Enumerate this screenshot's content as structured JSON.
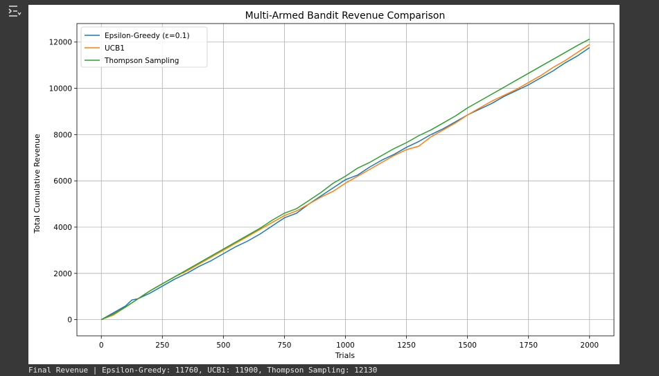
{
  "toolbar": {
    "output_icon": "output-toggle-icon"
  },
  "chart_data": {
    "type": "line",
    "title": "Multi-Armed Bandit Revenue Comparison",
    "xlabel": "Trials",
    "ylabel": "Total Cumulative Revenue",
    "xlim": [
      -100,
      2100
    ],
    "ylim": [
      -700,
      12800
    ],
    "xticks": [
      0,
      250,
      500,
      750,
      1000,
      1250,
      1500,
      1750,
      2000
    ],
    "yticks": [
      0,
      2000,
      4000,
      6000,
      8000,
      10000,
      12000
    ],
    "grid": true,
    "legend_position": "top-left",
    "series": [
      {
        "name": "Epsilon-Greedy (ε=0.1)",
        "color": "#1f77b4",
        "x": [
          0,
          50,
          100,
          125,
          150,
          200,
          250,
          300,
          350,
          400,
          450,
          500,
          550,
          600,
          650,
          700,
          750,
          800,
          850,
          900,
          950,
          1000,
          1050,
          1100,
          1150,
          1200,
          1250,
          1300,
          1350,
          1400,
          1450,
          1500,
          1550,
          1600,
          1650,
          1700,
          1750,
          1800,
          1850,
          1900,
          1950,
          2000
        ],
        "y": [
          0,
          300,
          600,
          850,
          900,
          1150,
          1450,
          1750,
          2000,
          2300,
          2550,
          2850,
          3150,
          3400,
          3700,
          4050,
          4400,
          4600,
          5000,
          5350,
          5700,
          6050,
          6250,
          6600,
          6900,
          7150,
          7450,
          7700,
          8000,
          8250,
          8550,
          8850,
          9100,
          9350,
          9650,
          9900,
          10150,
          10450,
          10750,
          11100,
          11400,
          11760
        ]
      },
      {
        "name": "UCB1",
        "color": "#ff7f0e",
        "x": [
          0,
          50,
          100,
          150,
          200,
          250,
          300,
          350,
          400,
          450,
          500,
          550,
          600,
          650,
          700,
          750,
          800,
          850,
          900,
          950,
          1000,
          1050,
          1100,
          1150,
          1200,
          1250,
          1300,
          1350,
          1400,
          1450,
          1500,
          1550,
          1600,
          1650,
          1700,
          1750,
          1800,
          1850,
          1900,
          1950,
          2000
        ],
        "y": [
          0,
          200,
          550,
          900,
          1250,
          1550,
          1850,
          2100,
          2400,
          2700,
          3000,
          3300,
          3600,
          3900,
          4200,
          4500,
          4700,
          5000,
          5300,
          5550,
          5900,
          6200,
          6500,
          6800,
          7100,
          7350,
          7500,
          7900,
          8200,
          8500,
          8850,
          9150,
          9450,
          9700,
          9950,
          10250,
          10550,
          10900,
          11200,
          11550,
          11900
        ]
      },
      {
        "name": "Thompson Sampling",
        "color": "#2ca02c",
        "x": [
          0,
          50,
          100,
          150,
          200,
          250,
          300,
          350,
          400,
          450,
          500,
          550,
          600,
          650,
          700,
          750,
          800,
          850,
          900,
          950,
          1000,
          1050,
          1100,
          1150,
          1200,
          1250,
          1300,
          1350,
          1400,
          1450,
          1500,
          1550,
          1600,
          1650,
          1700,
          1750,
          1800,
          1850,
          1900,
          1950,
          2000
        ],
        "y": [
          0,
          250,
          550,
          900,
          1250,
          1550,
          1850,
          2150,
          2450,
          2750,
          3050,
          3350,
          3650,
          3950,
          4300,
          4600,
          4800,
          5150,
          5500,
          5900,
          6200,
          6550,
          6800,
          7100,
          7400,
          7650,
          7950,
          8200,
          8500,
          8800,
          9150,
          9450,
          9750,
          10050,
          10350,
          10650,
          10950,
          11250,
          11550,
          11850,
          12130
        ]
      }
    ]
  },
  "stdout": {
    "text": "Final Revenue | Epsilon-Greedy: 11760, UCB1: 11900, Thompson Sampling: 12130"
  }
}
